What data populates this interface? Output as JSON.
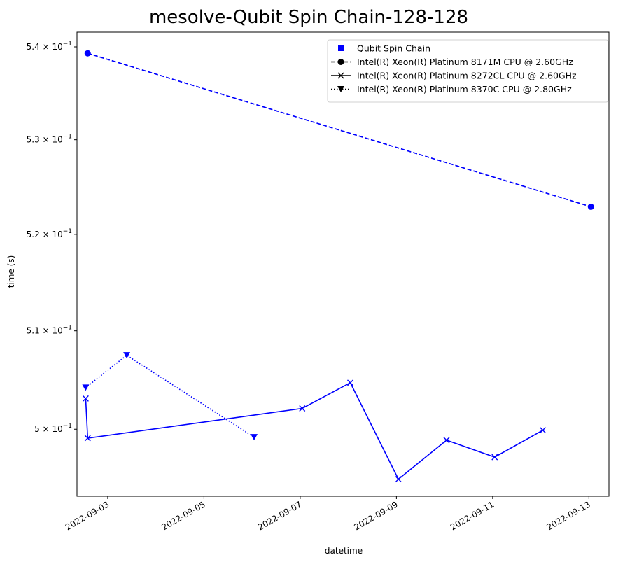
{
  "chart_data": {
    "type": "line",
    "title": "mesolve-Qubit Spin Chain-128-128",
    "xlabel": "datetime",
    "ylabel": "time (s)",
    "yscale": "log",
    "xlim": [
      "2022-09-02T08:40",
      "2022-09-13T10:00"
    ],
    "ylim": [
      0.4933,
      0.5416
    ],
    "grid": false,
    "legend_placement": "top-right",
    "x_ticks": [
      "2022-09-03",
      "2022-09-05",
      "2022-09-07",
      "2022-09-09",
      "2022-09-11",
      "2022-09-13"
    ],
    "y_ticks": [
      {
        "value": 0.5,
        "mantissa": "5",
        "exponent": "−1"
      },
      {
        "value": 0.51,
        "mantissa": "5.1",
        "exponent": "−1"
      },
      {
        "value": 0.52,
        "mantissa": "5.2",
        "exponent": "−1"
      },
      {
        "value": 0.53,
        "mantissa": "5.3",
        "exponent": "−1"
      },
      {
        "value": 0.54,
        "mantissa": "5.4",
        "exponent": "−1"
      }
    ],
    "legend_title_entry": {
      "label": "Qubit Spin Chain",
      "marker": "square",
      "color": "#0000ff"
    },
    "series": [
      {
        "name": "Intel(R) Xeon(R) Platinum 8171M CPU @ 2.60GHz",
        "linestyle": "dashed",
        "marker": "circle",
        "color": "#0000ff",
        "points": [
          {
            "x": "2022-09-02T14:00",
            "y": 0.5393
          },
          {
            "x": "2022-09-13T01:00",
            "y": 0.5229
          }
        ]
      },
      {
        "name": "Intel(R) Xeon(R) Platinum 8272CL CPU @ 2.60GHz",
        "linestyle": "solid",
        "marker": "x",
        "color": "#0000ff",
        "points": [
          {
            "x": "2022-09-02T13:00",
            "y": 0.5031
          },
          {
            "x": "2022-09-02T14:00",
            "y": 0.4991
          },
          {
            "x": "2022-09-07T01:00",
            "y": 0.5021
          },
          {
            "x": "2022-09-08T01:00",
            "y": 0.5047
          },
          {
            "x": "2022-09-09T01:00",
            "y": 0.495
          },
          {
            "x": "2022-09-10T01:00",
            "y": 0.4989
          },
          {
            "x": "2022-09-11T01:00",
            "y": 0.4972
          },
          {
            "x": "2022-09-12T01:00",
            "y": 0.4999
          }
        ]
      },
      {
        "name": "Intel(R) Xeon(R) Platinum 8370C CPU @ 2.80GHz",
        "linestyle": "dotted",
        "marker": "triangle-down",
        "color": "#0000ff",
        "points": [
          {
            "x": "2022-09-02T13:00",
            "y": 0.5042
          },
          {
            "x": "2022-09-03T09:30",
            "y": 0.5075
          },
          {
            "x": "2022-09-06T01:00",
            "y": 0.4992
          }
        ]
      }
    ]
  }
}
